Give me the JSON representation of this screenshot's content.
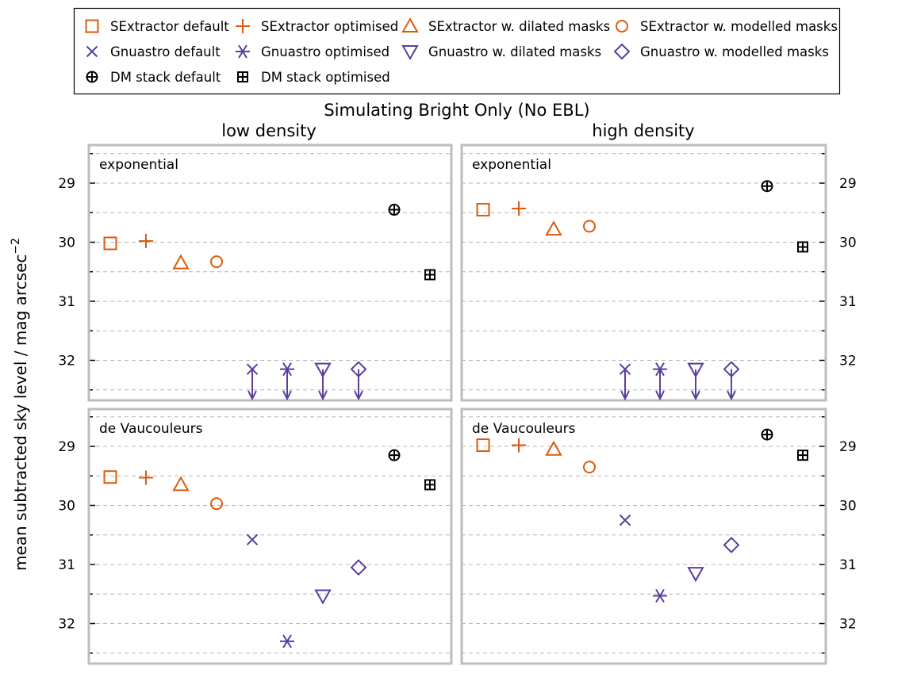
{
  "suptitle": "Simulating Bright Only (No EBL)",
  "ylabel": "mean subtracted sky level / mag arcsec",
  "ylabel_exp": "−2",
  "columns": [
    "low density",
    "high density"
  ],
  "rows": [
    "exponential",
    "de Vaucouleurs"
  ],
  "colors": {
    "orange": "#dd5a0a",
    "purple": "#5b3fa0",
    "black": "#000000",
    "frame": "#bdbdbd",
    "grid": "#b5b5b5"
  },
  "legend": [
    {
      "label": "SExtractor default",
      "marker": "square",
      "color": "orange"
    },
    {
      "label": "SExtractor optimised",
      "marker": "plus",
      "color": "orange"
    },
    {
      "label": "SExtractor w. dilated masks",
      "marker": "triangle-up",
      "color": "orange"
    },
    {
      "label": "SExtractor w. modelled masks",
      "marker": "circle",
      "color": "orange"
    },
    {
      "label": "Gnuastro default",
      "marker": "x",
      "color": "purple"
    },
    {
      "label": "Gnuastro optimised",
      "marker": "asterisk",
      "color": "purple"
    },
    {
      "label": "Gnuastro w. dilated masks",
      "marker": "triangle-down",
      "color": "purple"
    },
    {
      "label": "Gnuastro w. modelled masks",
      "marker": "diamond",
      "color": "purple"
    },
    {
      "label": "DM stack default",
      "marker": "circle-plus",
      "color": "black"
    },
    {
      "label": "DM stack optimised",
      "marker": "square-plus",
      "color": "black"
    }
  ],
  "chart_data": {
    "type": "scatter",
    "y_inverted": true,
    "ylim": [
      28.55,
      32.5
    ],
    "yticks": [
      29,
      30,
      31,
      32
    ],
    "categories": [
      "SExtractor default",
      "SExtractor optimised",
      "SExtractor w. dilated masks",
      "SExtractor w. modelled masks",
      "Gnuastro default",
      "Gnuastro optimised",
      "Gnuastro w. dilated masks",
      "Gnuastro w. modelled masks",
      "DM stack default",
      "DM stack optimised"
    ],
    "panels": [
      {
        "row": "exponential",
        "column": "low density",
        "values": [
          30.02,
          29.98,
          30.35,
          30.33,
          32.15,
          32.15,
          32.15,
          32.15,
          29.45,
          30.55
        ],
        "upper_limit": [
          false,
          false,
          false,
          false,
          true,
          true,
          true,
          true,
          false,
          false
        ]
      },
      {
        "row": "exponential",
        "column": "high density",
        "values": [
          29.45,
          29.43,
          29.78,
          29.73,
          32.15,
          32.15,
          32.15,
          32.15,
          29.05,
          30.08
        ],
        "upper_limit": [
          false,
          false,
          false,
          false,
          true,
          true,
          true,
          true,
          false,
          false
        ]
      },
      {
        "row": "de Vaucouleurs",
        "column": "low density",
        "values": [
          29.52,
          29.53,
          29.65,
          29.97,
          30.58,
          32.3,
          31.53,
          31.05,
          29.15,
          29.65
        ],
        "upper_limit": [
          false,
          false,
          false,
          false,
          false,
          false,
          false,
          false,
          false,
          false
        ]
      },
      {
        "row": "de Vaucouleurs",
        "column": "high density",
        "values": [
          28.98,
          28.98,
          29.05,
          29.35,
          30.25,
          31.53,
          31.15,
          30.67,
          28.8,
          29.15
        ],
        "upper_limit": [
          false,
          false,
          false,
          false,
          false,
          false,
          false,
          false,
          false,
          false
        ]
      }
    ]
  }
}
